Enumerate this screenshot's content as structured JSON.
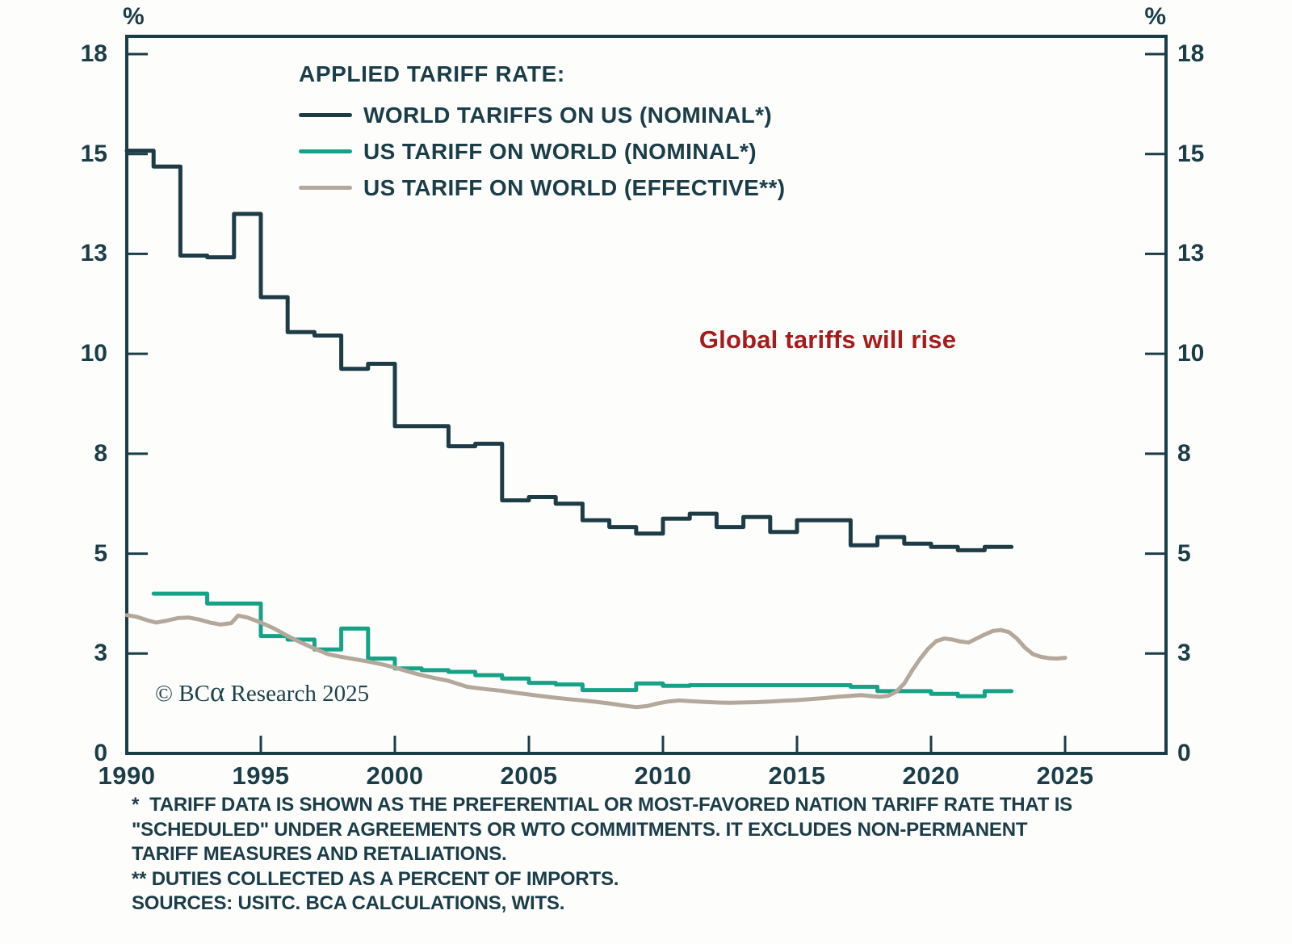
{
  "axes": {
    "unit_left": "%",
    "unit_right": "%",
    "y_tick_labels": [
      "18",
      "15",
      "13",
      "10",
      "8",
      "5",
      "3",
      "0"
    ],
    "x_tick_labels": [
      "1990",
      "1995",
      "2000",
      "2005",
      "2010",
      "2015",
      "2020",
      "2025"
    ]
  },
  "legend": {
    "title": "APPLIED TARIFF RATE:",
    "items": [
      {
        "label": "WORLD TARIFFS ON US (NOMINAL*)",
        "color": "#1e3c46"
      },
      {
        "label": "US TARIFF ON WORLD (NOMINAL*)",
        "color": "#16a287"
      },
      {
        "label": "US TARIFF ON WORLD (EFFECTIVE**)",
        "color": "#b3a89b"
      }
    ]
  },
  "annotation": {
    "text": "Global tariffs will rise",
    "color": "#a51c1c"
  },
  "copyright": {
    "prefix": "© BC",
    "alpha": "α",
    "suffix": " Research 2025"
  },
  "footnotes": [
    "*  TARIFF DATA IS SHOWN AS THE PREFERENTIAL OR MOST-FAVORED NATION TARIFF RATE THAT IS",
    "\"SCHEDULED\" UNDER AGREEMENTS OR WTO COMMITMENTS. IT EXCLUDES NON-PERMANENT",
    "TARIFF MEASURES AND RETALIATIONS.",
    "** DUTIES COLLECTED AS A PERCENT OF IMPORTS.",
    "SOURCES: USITC. BCA CALCULATIONS, WITS."
  ],
  "chart_data": {
    "type": "line",
    "title": "APPLIED TARIFF RATE",
    "ylabel": "%",
    "grid": false,
    "legend_position": "top-left-inside",
    "y_ticks": [
      18,
      15,
      13,
      10,
      8,
      5,
      3,
      0
    ],
    "y_scale_note": "ticks are evenly spaced on the axis despite uneven values",
    "x_ticks": [
      1990,
      1995,
      2000,
      2005,
      2010,
      2015,
      2020,
      2025
    ],
    "x_range": [
      1990,
      2028.8
    ],
    "axis_color": "#1b3d48",
    "series": [
      {
        "name": "WORLD TARIFFS ON US (NOMINAL*)",
        "color": "#1e3c46",
        "style": "step",
        "start_year": 1990,
        "values": [
          15.1,
          14.75,
          12.95,
          12.9,
          13.8,
          11.7,
          10.65,
          10.55,
          9.7,
          9.8,
          8.55,
          8.55,
          8.15,
          8.2,
          6.6,
          6.7,
          6.5,
          6.0,
          5.8,
          5.6,
          6.05,
          6.2,
          5.8,
          6.1,
          5.65,
          6.0,
          6.0,
          5.25,
          5.5,
          5.3,
          5.2,
          5.1,
          5.2
        ]
      },
      {
        "name": "US TARIFF ON WORLD (NOMINAL*)",
        "color": "#16a287",
        "style": "step",
        "start_year": 1991,
        "values": [
          4.2,
          4.2,
          4.0,
          4.0,
          3.35,
          3.28,
          3.08,
          3.5,
          2.85,
          2.55,
          2.5,
          2.45,
          2.35,
          2.25,
          2.12,
          2.07,
          1.9,
          1.9,
          2.1,
          2.03,
          2.05,
          2.05,
          2.05,
          2.05,
          2.05,
          2.05,
          2.0,
          1.87,
          1.87,
          1.79,
          1.72,
          1.87
        ]
      },
      {
        "name": "US TARIFF ON WORLD (EFFECTIVE**)",
        "color": "#b3a89b",
        "style": "smooth",
        "points": [
          [
            1990.0,
            3.77
          ],
          [
            1990.4,
            3.73
          ],
          [
            1990.8,
            3.66
          ],
          [
            1991.1,
            3.62
          ],
          [
            1991.5,
            3.66
          ],
          [
            1991.9,
            3.71
          ],
          [
            1992.3,
            3.72
          ],
          [
            1992.7,
            3.68
          ],
          [
            1993.1,
            3.62
          ],
          [
            1993.5,
            3.58
          ],
          [
            1993.9,
            3.61
          ],
          [
            1994.15,
            3.76
          ],
          [
            1994.5,
            3.72
          ],
          [
            1995.0,
            3.62
          ],
          [
            1995.5,
            3.5
          ],
          [
            1996.0,
            3.35
          ],
          [
            1996.5,
            3.22
          ],
          [
            1997.0,
            3.1
          ],
          [
            1997.5,
            2.98
          ],
          [
            1998.0,
            2.9
          ],
          [
            1998.5,
            2.83
          ],
          [
            1999.0,
            2.76
          ],
          [
            1999.5,
            2.68
          ],
          [
            2000.0,
            2.58
          ],
          [
            2000.5,
            2.46
          ],
          [
            2001.0,
            2.35
          ],
          [
            2001.5,
            2.26
          ],
          [
            2002.0,
            2.18
          ],
          [
            2002.7,
            2.0
          ],
          [
            2003.0,
            1.97
          ],
          [
            2003.5,
            1.92
          ],
          [
            2004.0,
            1.88
          ],
          [
            2004.5,
            1.82
          ],
          [
            2005.0,
            1.77
          ],
          [
            2005.5,
            1.72
          ],
          [
            2006.0,
            1.67
          ],
          [
            2006.5,
            1.63
          ],
          [
            2007.0,
            1.59
          ],
          [
            2007.5,
            1.55
          ],
          [
            2008.0,
            1.5
          ],
          [
            2008.5,
            1.44
          ],
          [
            2009.0,
            1.39
          ],
          [
            2009.4,
            1.42
          ],
          [
            2009.8,
            1.5
          ],
          [
            2010.2,
            1.56
          ],
          [
            2010.6,
            1.59
          ],
          [
            2011.0,
            1.57
          ],
          [
            2011.5,
            1.55
          ],
          [
            2012.0,
            1.53
          ],
          [
            2012.5,
            1.52
          ],
          [
            2013.0,
            1.53
          ],
          [
            2013.5,
            1.54
          ],
          [
            2014.0,
            1.56
          ],
          [
            2014.5,
            1.58
          ],
          [
            2015.0,
            1.6
          ],
          [
            2015.5,
            1.63
          ],
          [
            2016.0,
            1.66
          ],
          [
            2016.5,
            1.7
          ],
          [
            2017.0,
            1.73
          ],
          [
            2017.4,
            1.75
          ],
          [
            2017.8,
            1.72
          ],
          [
            2018.1,
            1.7
          ],
          [
            2018.4,
            1.73
          ],
          [
            2018.7,
            1.85
          ],
          [
            2019.0,
            2.1
          ],
          [
            2019.3,
            2.5
          ],
          [
            2019.6,
            2.85
          ],
          [
            2019.9,
            3.1
          ],
          [
            2020.2,
            3.25
          ],
          [
            2020.5,
            3.3
          ],
          [
            2020.8,
            3.28
          ],
          [
            2021.1,
            3.24
          ],
          [
            2021.4,
            3.22
          ],
          [
            2021.7,
            3.3
          ],
          [
            2022.0,
            3.38
          ],
          [
            2022.3,
            3.45
          ],
          [
            2022.6,
            3.47
          ],
          [
            2022.9,
            3.43
          ],
          [
            2023.2,
            3.3
          ],
          [
            2023.5,
            3.12
          ],
          [
            2023.8,
            2.98
          ],
          [
            2024.1,
            2.9
          ],
          [
            2024.4,
            2.86
          ],
          [
            2024.7,
            2.85
          ],
          [
            2025.0,
            2.87
          ]
        ]
      }
    ]
  }
}
